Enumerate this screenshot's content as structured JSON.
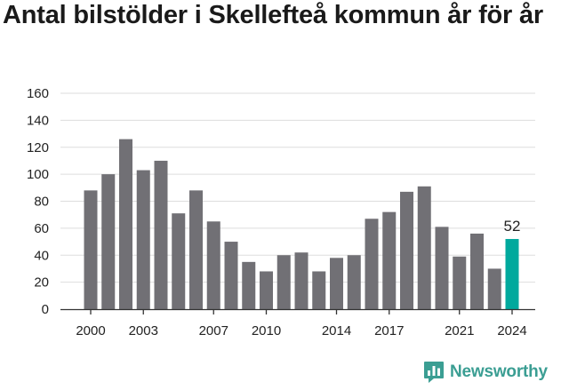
{
  "title": "Antal bilstölder i Skellefteå kommun år för år",
  "brand": {
    "name": "Newsworthy",
    "icon": "bar-chart-speech-icon",
    "color": "#3b9e93"
  },
  "chart_data": {
    "type": "bar",
    "title": "Antal bilstölder i Skellefteå kommun år för år",
    "categories": [
      2000,
      2001,
      2002,
      2003,
      2004,
      2005,
      2006,
      2007,
      2008,
      2009,
      2010,
      2011,
      2012,
      2013,
      2014,
      2015,
      2016,
      2017,
      2018,
      2019,
      2020,
      2021,
      2022,
      2023,
      2024
    ],
    "values": [
      88,
      100,
      126,
      103,
      110,
      71,
      88,
      65,
      50,
      35,
      28,
      40,
      42,
      28,
      38,
      40,
      67,
      72,
      87,
      91,
      61,
      39,
      56,
      30,
      52
    ],
    "ylim": [
      0,
      160
    ],
    "yticks": [
      0,
      20,
      40,
      60,
      80,
      100,
      120,
      140,
      160
    ],
    "xtick_labels": [
      "2000",
      "2003",
      "2007",
      "2010",
      "2014",
      "2017",
      "2021",
      "2024"
    ],
    "highlight": {
      "category": 2024,
      "label": "52",
      "color": "#00a99d"
    },
    "bar_color": "#717075",
    "grid": true,
    "xlabel": "",
    "ylabel": ""
  }
}
